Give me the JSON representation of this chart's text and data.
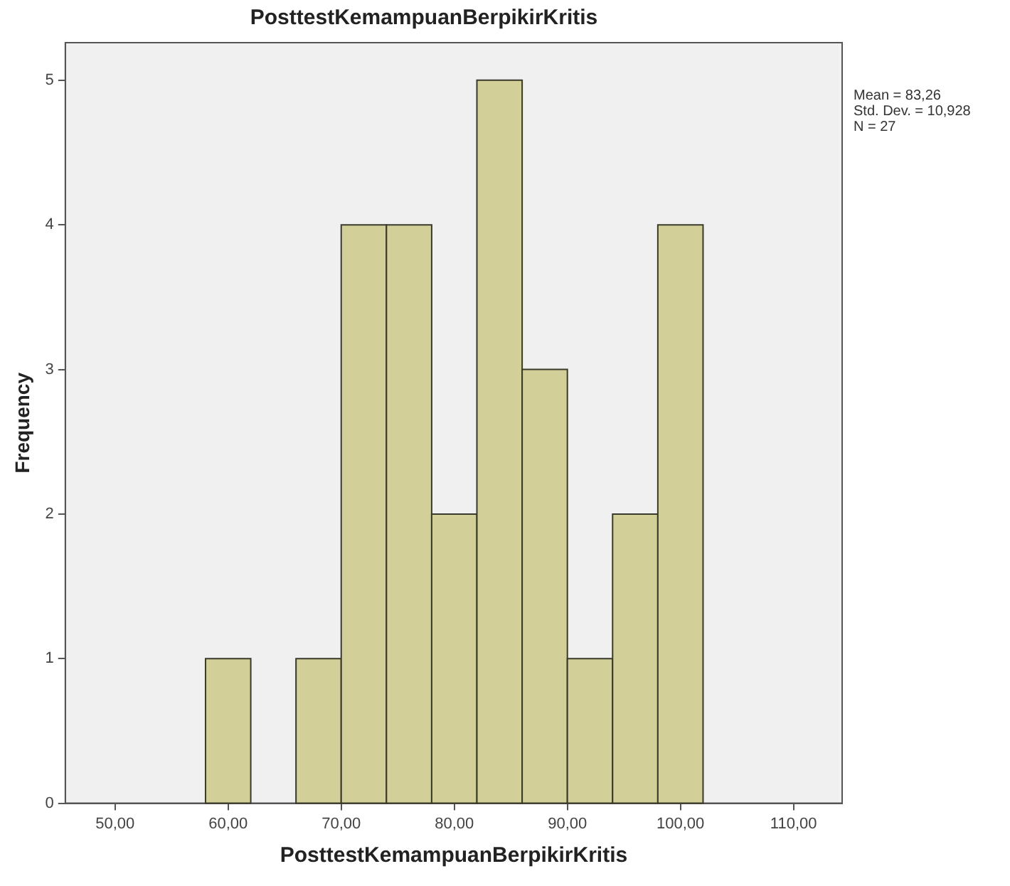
{
  "chart_data": {
    "type": "histogram",
    "title": "PosttestKemampuanBerpikirKritis",
    "xlabel": "PosttestKemampuanBerpikirKritis",
    "ylabel": "Frequency",
    "bins": [
      58,
      62,
      66,
      70,
      74,
      78,
      82,
      86,
      90,
      94,
      98,
      102
    ],
    "values": [
      1,
      0,
      1,
      4,
      4,
      2,
      5,
      3,
      1,
      2,
      4
    ],
    "color": "#d3cf98",
    "xlim": [
      45.6,
      114.3
    ],
    "xticks": [
      {
        "value": 50,
        "label": "50,00"
      },
      {
        "value": 60,
        "label": "60,00"
      },
      {
        "value": 70,
        "label": "70,00"
      },
      {
        "value": 80,
        "label": "80,00"
      },
      {
        "value": 90,
        "label": "90,00"
      },
      {
        "value": 100,
        "label": "100,00"
      },
      {
        "value": 110,
        "label": "110,00"
      }
    ],
    "ylim": [
      0,
      5.26
    ],
    "yticks": [
      0,
      1,
      2,
      3,
      4,
      5
    ],
    "grid": false,
    "legend": false,
    "annotations": [
      "Mean = 83,26",
      "Std. Dev. = 10,928",
      "N = 27"
    ]
  }
}
